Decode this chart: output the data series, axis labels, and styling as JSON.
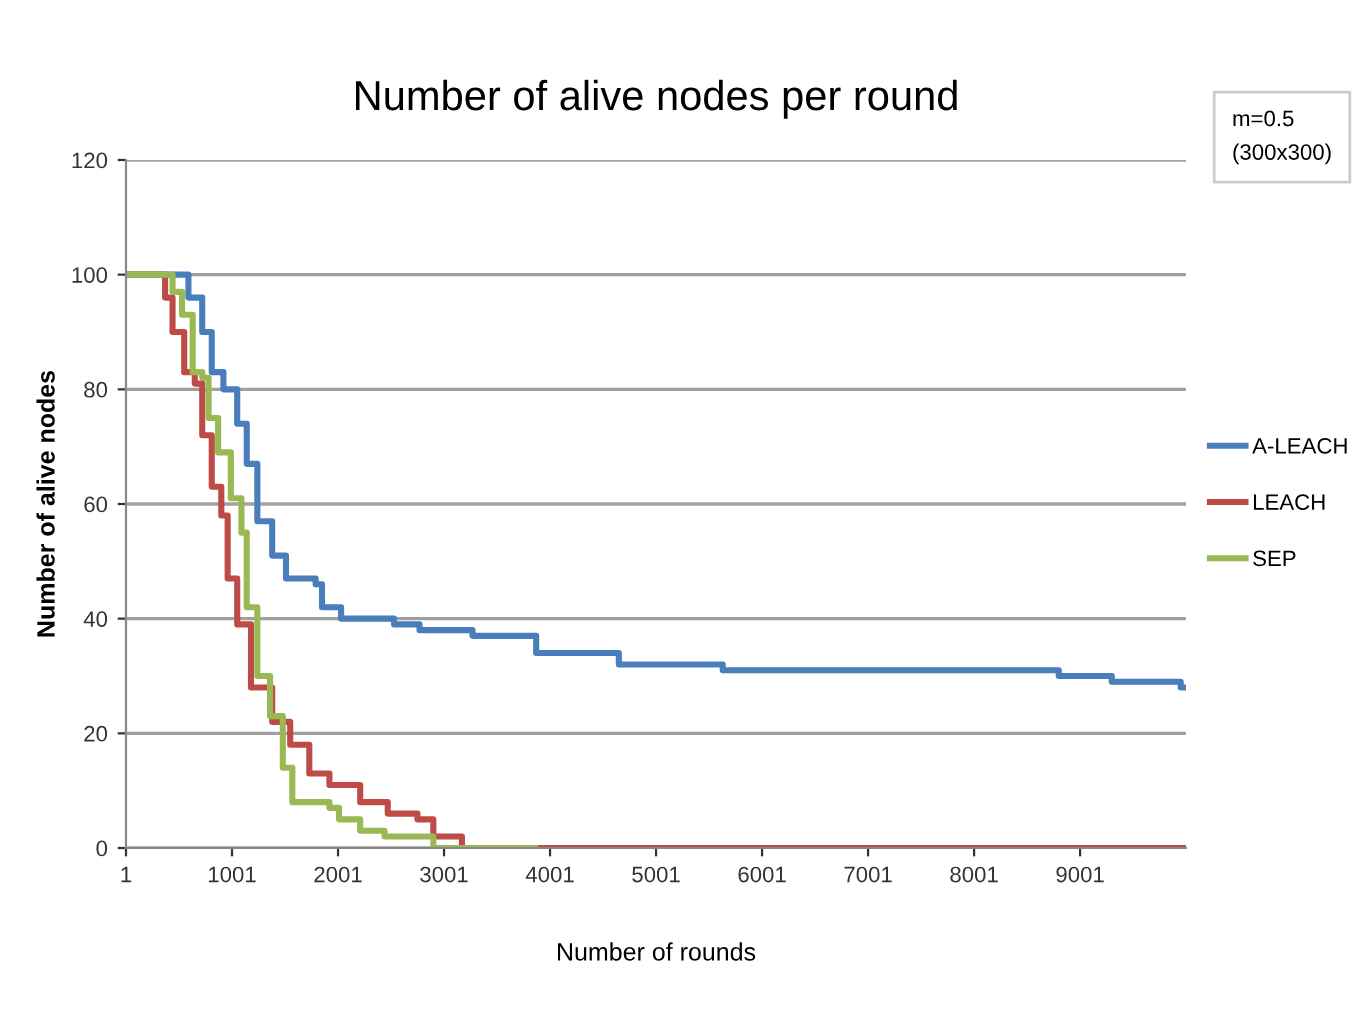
{
  "chart_data": {
    "type": "step",
    "title": "Number of alive nodes per round",
    "xlabel": "Number of rounds",
    "ylabel": "Number of alive nodes",
    "annotations": [
      "m=0.5\n(300x300)"
    ],
    "xlim": [
      1,
      10000
    ],
    "xticks": [
      1,
      1001,
      2001,
      3001,
      4001,
      5001,
      6001,
      7001,
      8001,
      9001
    ],
    "ylim": [
      0,
      120
    ],
    "yticks": [
      0,
      20,
      40,
      60,
      80,
      100,
      120
    ],
    "grid": "y",
    "legend": "right",
    "marker": "none",
    "line_style": "solid",
    "series": [
      {
        "name": "A-LEACH",
        "color": "#4a7ebb",
        "x": [
          1,
          460,
          590,
          720,
          810,
          920,
          1050,
          1140,
          1240,
          1380,
          1510,
          1790,
          1850,
          2030,
          2530,
          2770,
          3270,
          3870,
          4650,
          5630,
          8800,
          9300,
          9950,
          10000
        ],
        "values": [
          100,
          100,
          96,
          90,
          83,
          80,
          74,
          67,
          57,
          51,
          47,
          46,
          42,
          40,
          39,
          38,
          37,
          34,
          32,
          31,
          30,
          29,
          28,
          28
        ]
      },
      {
        "name": "LEACH",
        "color": "#be4b48",
        "x": [
          1,
          260,
          370,
          440,
          550,
          650,
          720,
          810,
          900,
          960,
          1050,
          1180,
          1380,
          1550,
          1730,
          1920,
          2210,
          2470,
          2750,
          2900,
          3170,
          10000
        ],
        "values": [
          100,
          100,
          96,
          90,
          83,
          81,
          72,
          63,
          58,
          47,
          39,
          28,
          22,
          18,
          13,
          11,
          8,
          6,
          5,
          2,
          0,
          0
        ]
      },
      {
        "name": "SEP",
        "color": "#98b954",
        "x": [
          1,
          350,
          440,
          530,
          630,
          720,
          780,
          870,
          990,
          1090,
          1140,
          1240,
          1360,
          1480,
          1570,
          1920,
          2010,
          2210,
          2440,
          2900,
          3860
        ],
        "values": [
          100,
          100,
          97,
          93,
          83,
          82,
          75,
          69,
          61,
          55,
          42,
          30,
          23,
          14,
          8,
          7,
          5,
          3,
          2,
          0,
          0
        ]
      }
    ]
  }
}
